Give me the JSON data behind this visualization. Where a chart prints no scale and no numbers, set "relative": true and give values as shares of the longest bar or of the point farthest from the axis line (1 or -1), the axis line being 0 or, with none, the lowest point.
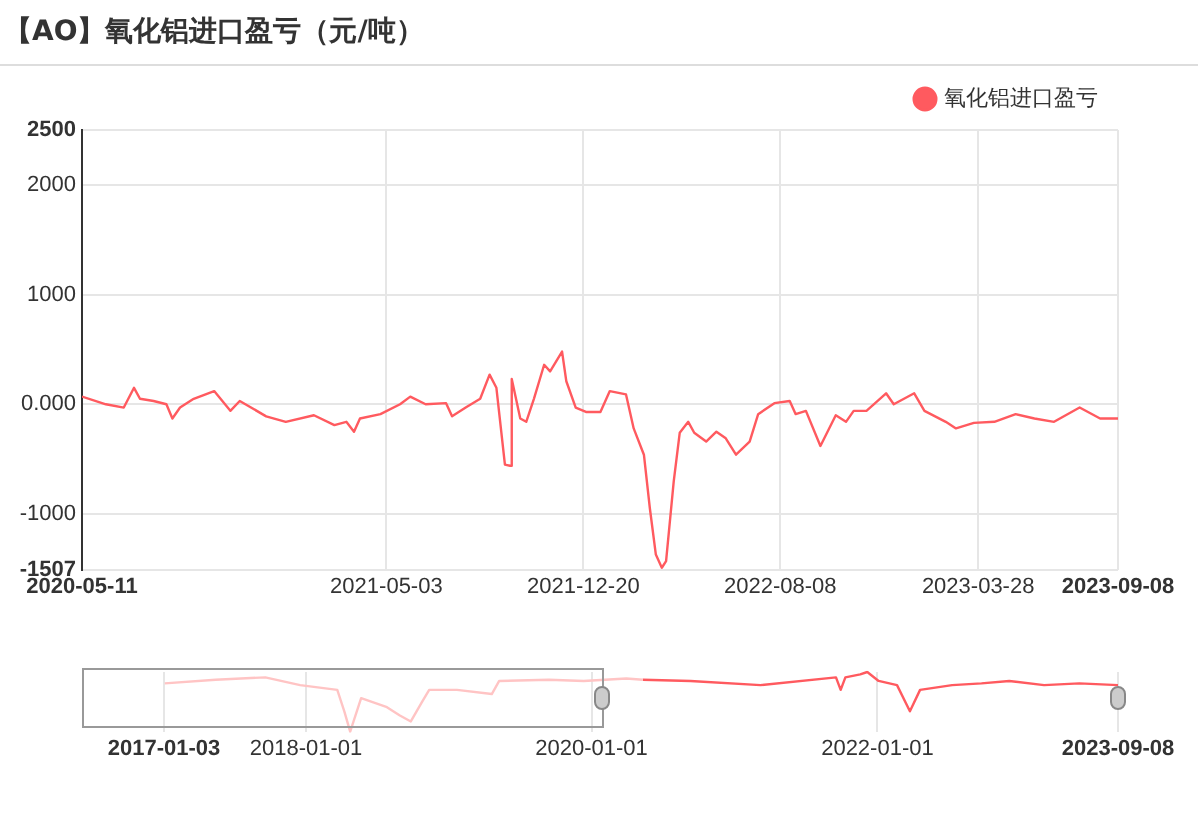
{
  "chart_data": [
    {
      "type": "line",
      "title": "【AO】氧化铝进口盈亏（元/吨）",
      "legend": "top right",
      "grid": true,
      "xlim": [
        "2020-05-11",
        "2023-09-08"
      ],
      "xticks": [
        "2020-05-11",
        "2021-05-03",
        "2021-12-20",
        "2022-08-08",
        "2023-03-28",
        "2023-09-08"
      ],
      "ylim": [
        -1507,
        2500
      ],
      "yticks": [
        -1507,
        -1000,
        {
          "value": 0,
          "label": "0.000"
        },
        1000,
        2000,
        2500
      ],
      "series": [
        {
          "name": "氧化铝进口盈亏",
          "color": "#ff5a5f",
          "x": [
            "2020-05-11",
            "2020-06-08",
            "2020-06-29",
            "2020-07-11",
            "2020-07-18",
            "2020-08-03",
            "2020-08-18",
            "2020-08-25",
            "2020-09-03",
            "2020-09-19",
            "2020-10-13",
            "2020-11-01",
            "2020-11-12",
            "2020-12-13",
            "2021-01-05",
            "2021-02-07",
            "2021-03-03",
            "2021-03-17",
            "2021-03-26",
            "2021-04-02",
            "2021-04-26",
            "2021-05-19",
            "2021-05-31",
            "2021-06-18",
            "2021-07-12",
            "2021-07-19",
            "2021-08-04",
            "2021-08-21",
            "2021-09-01",
            "2021-09-09",
            "2021-09-19",
            "2021-09-25",
            "2021-09-27",
            "2021-10-07",
            "2021-10-14",
            "2021-10-23",
            "2021-11-04",
            "2021-11-11",
            "2021-11-25",
            "2021-11-30",
            "2021-12-11",
            "2021-12-23",
            "2022-01-09",
            "2022-01-20",
            "2022-02-08",
            "2022-02-17",
            "2022-03-01",
            "2022-03-08",
            "2022-03-15",
            "2022-03-22",
            "2022-03-27",
            "2022-04-05",
            "2022-04-12",
            "2022-04-22",
            "2022-04-29",
            "2022-05-13",
            "2022-05-25",
            "2022-06-05",
            "2022-06-17",
            "2022-07-03",
            "2022-07-13",
            "2022-08-01",
            "2022-08-19",
            "2022-08-26",
            "2022-09-07",
            "2022-09-24",
            "2022-10-12",
            "2022-10-24",
            "2022-11-02",
            "2022-11-17",
            "2022-12-10",
            "2022-12-19",
            "2023-01-12",
            "2023-01-24",
            "2023-02-18",
            "2023-03-02",
            "2023-03-23",
            "2023-04-16",
            "2023-05-11",
            "2023-06-02",
            "2023-06-25",
            "2023-07-25",
            "2023-08-18",
            "2023-09-08"
          ],
          "values": [
            70,
            0,
            -30,
            150,
            50,
            30,
            0,
            -130,
            -30,
            50,
            120,
            -60,
            30,
            -110,
            -160,
            -100,
            -190,
            -160,
            -250,
            -130,
            -90,
            0,
            70,
            0,
            10,
            -110,
            -30,
            50,
            270,
            150,
            -550,
            -560,
            230,
            -130,
            -160,
            50,
            360,
            300,
            480,
            210,
            -30,
            -70,
            -70,
            120,
            90,
            -220,
            -460,
            -950,
            -1370,
            -1490,
            -1430,
            -700,
            -260,
            -160,
            -260,
            -340,
            -250,
            -310,
            -460,
            -340,
            -90,
            10,
            30,
            -90,
            -60,
            -380,
            -100,
            -160,
            -60,
            -60,
            100,
            0,
            100,
            -60,
            -160,
            -220,
            -170,
            -160,
            -90,
            -130,
            -160,
            -30,
            -130,
            -130
          ]
        }
      ]
    },
    {
      "type": "line",
      "relative": true,
      "grid": "x",
      "tick_labels": "x",
      "xlim": [
        "2017-01-03",
        "2023-09-08"
      ],
      "xticks": [
        "2017-01-03",
        "2018-01-01",
        "2020-01-01",
        "2022-01-01",
        "2023-09-08"
      ],
      "series": [
        {
          "color": "#ffc4c4",
          "x": [
            "2017-01-05",
            "2017-05-15",
            "2017-09-19",
            "2017-12-17",
            "2018-03-22",
            "2018-04-09",
            "2018-04-24",
            "2018-05-22",
            "2018-07-27",
            "2018-08-29",
            "2018-09-26",
            "2018-10-24",
            "2018-11-12",
            "2019-01-22",
            "2019-04-21",
            "2019-05-10",
            "2019-09-14",
            "2019-12-12",
            "2020-03-30",
            "2020-05-11"
          ],
          "values": [
            0.81,
            0.87,
            0.91,
            0.78,
            0.7,
            0.34,
            0,
            0.56,
            0.41,
            0.27,
            0.17,
            0.49,
            0.7,
            0.7,
            0.63,
            0.85,
            0.87,
            0.85,
            0.89,
            0.87
          ]
        },
        {
          "color": "#ff5a5f",
          "x": [
            "2020-05-11",
            "2020-09-10",
            "2021-03-08",
            "2021-09-17",
            "2021-09-29",
            "2021-10-11",
            "2021-11-18",
            "2021-12-06",
            "2022-01-04",
            "2022-02-20",
            "2022-03-25",
            "2022-04-20",
            "2022-07-11",
            "2022-09-24",
            "2022-12-04",
            "2023-03-03",
            "2023-06-01",
            "2023-09-08"
          ],
          "values": [
            0.87,
            0.85,
            0.78,
            0.91,
            0.7,
            0.91,
            0.96,
            1,
            0.85,
            0.78,
            0.34,
            0.7,
            0.78,
            0.81,
            0.85,
            0.78,
            0.81,
            0.78
          ]
        }
      ]
    }
  ]
}
